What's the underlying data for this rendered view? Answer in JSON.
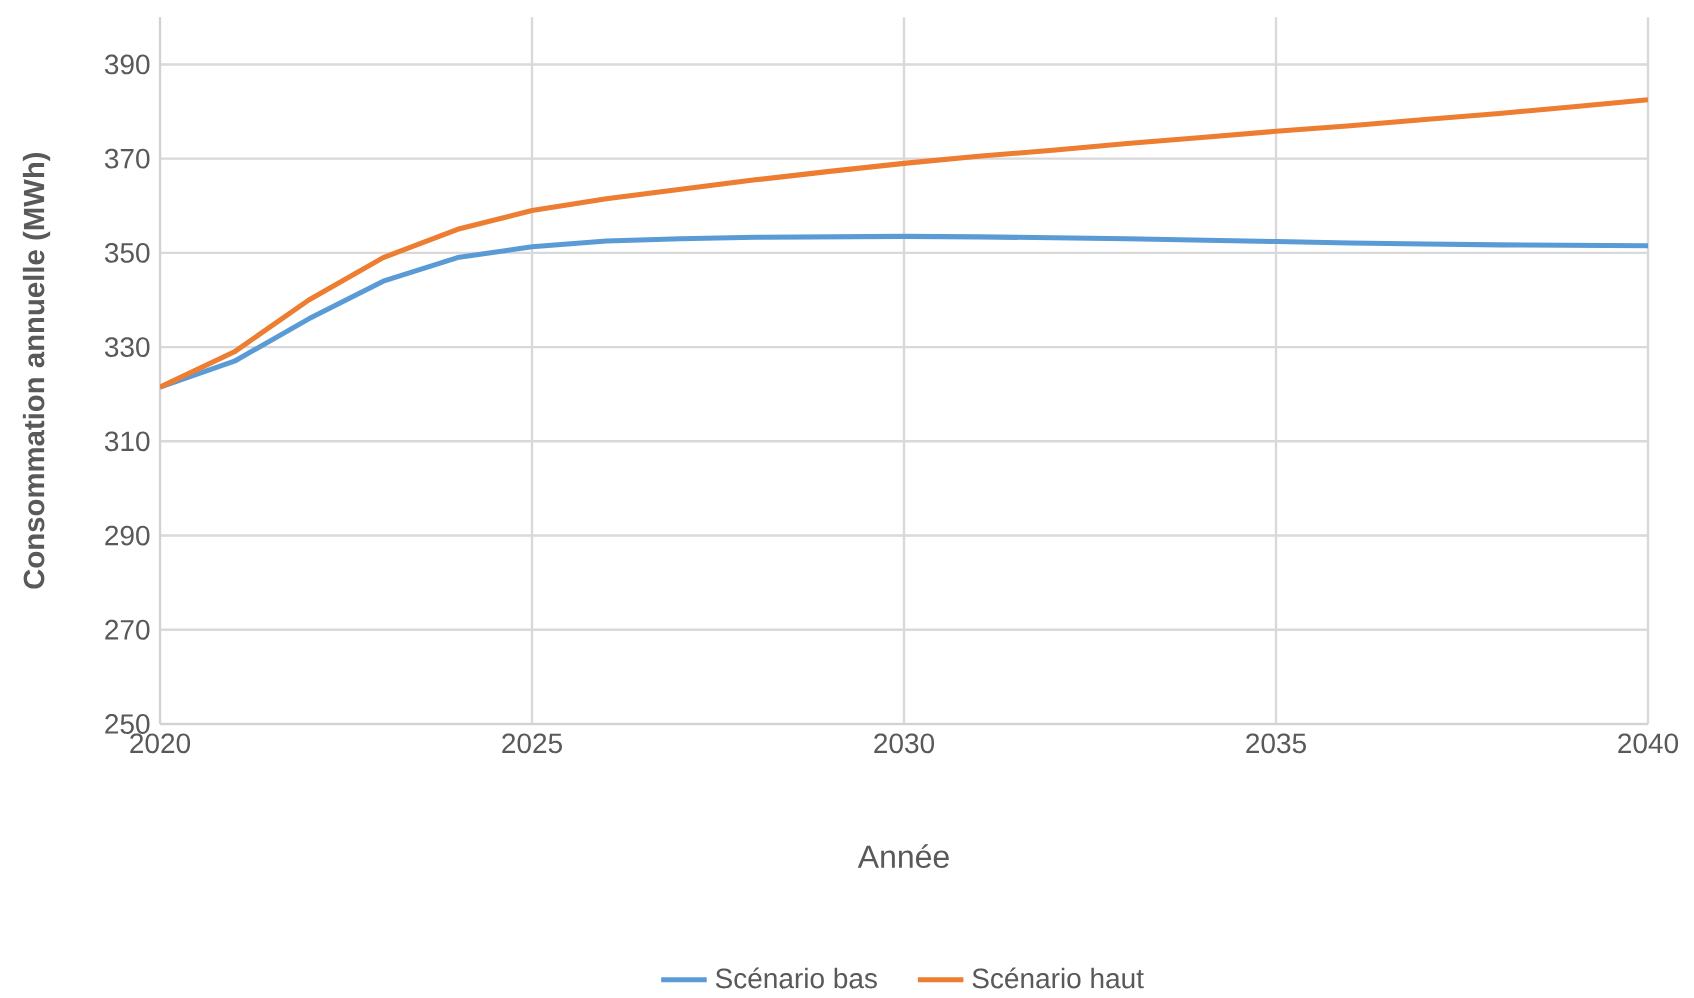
{
  "chart_data": {
    "type": "line",
    "xlabel": "Année",
    "ylabel": "Consommation annuelle (MWh)",
    "x": [
      2020,
      2021,
      2022,
      2023,
      2024,
      2025,
      2026,
      2027,
      2028,
      2029,
      2030,
      2031,
      2032,
      2033,
      2034,
      2035,
      2036,
      2037,
      2038,
      2039,
      2040
    ],
    "series": [
      {
        "name": "Scénario bas",
        "color": "#5b9bd5",
        "values": [
          321.5,
          327,
          336,
          344,
          349,
          351.3,
          352.5,
          353,
          353.3,
          353.4,
          353.5,
          353.4,
          353.2,
          353,
          352.7,
          352.4,
          352.1,
          351.9,
          351.7,
          351.6,
          351.5
        ]
      },
      {
        "name": "Scénario haut",
        "color": "#ed7d31",
        "values": [
          321.5,
          329,
          340,
          349,
          355,
          359,
          361.5,
          363.5,
          365.5,
          367.3,
          369,
          370.5,
          371.8,
          373.2,
          374.5,
          375.8,
          377,
          378.3,
          379.6,
          381,
          382.5
        ]
      }
    ],
    "xlim": [
      2020,
      2040
    ],
    "xticks": [
      2020,
      2025,
      2030,
      2035,
      2040
    ],
    "ylim": [
      250,
      400
    ],
    "yticks": [
      250,
      270,
      290,
      310,
      330,
      350,
      370,
      390
    ],
    "grid": true,
    "legend": "bottom",
    "marker": "none",
    "line_style": "solid"
  }
}
